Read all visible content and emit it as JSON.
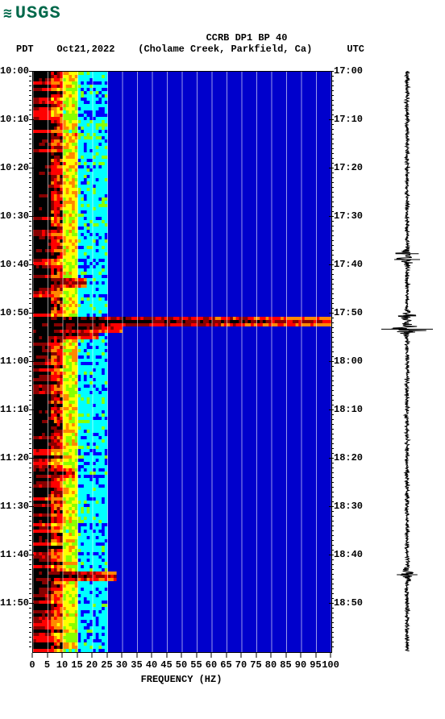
{
  "logo": {
    "symbol": "≋",
    "text": "USGS"
  },
  "header": {
    "title": "CCRB DP1 BP 40",
    "tz_left": "PDT",
    "date": "Oct21,2022",
    "location": "(Cholame Creek, Parkfield, Ca)",
    "tz_right": "UTC"
  },
  "spectrogram": {
    "type": "heatmap",
    "x_label": "FREQUENCY (HZ)",
    "x_ticks": [
      0,
      5,
      10,
      15,
      20,
      25,
      30,
      35,
      40,
      45,
      50,
      55,
      60,
      65,
      70,
      75,
      80,
      85,
      90,
      95,
      100
    ],
    "y_left_major": [
      "10:00",
      "10:10",
      "10:20",
      "10:30",
      "10:40",
      "10:50",
      "11:00",
      "11:10",
      "11:20",
      "11:30",
      "11:40",
      "11:50"
    ],
    "y_right_major": [
      "17:00",
      "17:10",
      "17:20",
      "17:30",
      "17:40",
      "17:50",
      "18:00",
      "18:10",
      "18:20",
      "18:30",
      "18:40",
      "18:50"
    ],
    "minor_per_major": 10,
    "colors": {
      "bg_low": "#0000cc",
      "bg_high": "#0000ff",
      "c1": "#00ffff",
      "c2": "#88ff00",
      "c3": "#ffff00",
      "c4": "#ff8800",
      "c5": "#ff0000",
      "c6": "#880000",
      "black": "#000000"
    },
    "event_rows_pct": [
      36,
      42.5,
      44,
      44.8,
      69,
      86.5
    ],
    "event_widths_pct": [
      18,
      100,
      30,
      22,
      14,
      28
    ]
  },
  "seismogram": {
    "type": "wiggle",
    "color": "#000000",
    "events_pct": [
      31.5,
      32.5,
      42.2,
      44.5,
      86.8
    ],
    "events_amp": [
      0.45,
      0.5,
      0.35,
      1.0,
      0.4
    ]
  }
}
